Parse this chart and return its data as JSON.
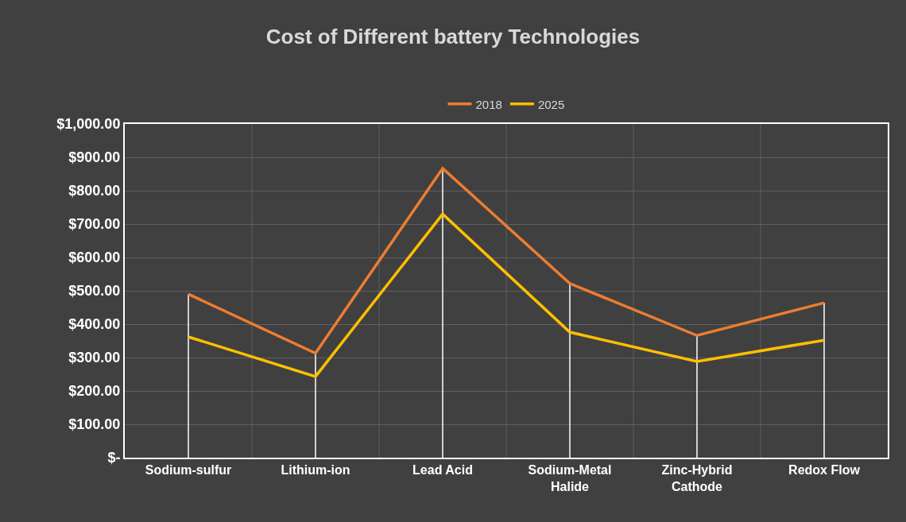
{
  "chart_data": {
    "type": "line",
    "title": "Cost of Different battery Technologies",
    "categories": [
      "Sodium-sulfur",
      "Lithium-ion",
      "Lead Acid",
      "Sodium-Metal Halide",
      "Zinc-Hybrid Cathode",
      "Redox Flow"
    ],
    "series": [
      {
        "name": "2018",
        "color": "#ed7d31",
        "values": [
          490,
          313,
          867,
          522,
          366,
          464
        ],
        "errors": [
          [
            0,
            490
          ],
          [
            0,
            313
          ],
          [
            0,
            867
          ],
          [
            0,
            522
          ],
          [
            0,
            366
          ],
          [
            0,
            464
          ]
        ]
      },
      {
        "name": "2025",
        "color": "#ffc000",
        "values": [
          362,
          243,
          730,
          376,
          288,
          352
        ]
      }
    ],
    "ylim": [
      0,
      1000
    ],
    "yticks": [
      {
        "value": 0,
        "label": "$-"
      },
      {
        "value": 100,
        "label": "$100.00"
      },
      {
        "value": 200,
        "label": "$200.00"
      },
      {
        "value": 300,
        "label": "$300.00"
      },
      {
        "value": 400,
        "label": "$400.00"
      },
      {
        "value": 500,
        "label": "$500.00"
      },
      {
        "value": 600,
        "label": "$600.00"
      },
      {
        "value": 700,
        "label": "$700.00"
      },
      {
        "value": 800,
        "label": "$800.00"
      },
      {
        "value": 900,
        "label": "$900.00"
      },
      {
        "value": 1000,
        "label": "$1,000.00"
      }
    ],
    "grid": true,
    "legend": "top",
    "marker": "none",
    "line_style": "solid"
  }
}
